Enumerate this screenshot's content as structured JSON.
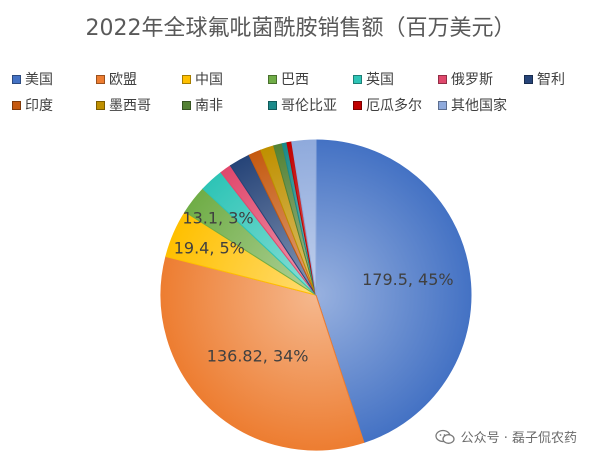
{
  "chart_data": {
    "type": "pie",
    "title": "2022年全球氟吡菌酰胺销售额（百万美元）",
    "slices": [
      {
        "name": "美国",
        "value": 179.5,
        "percent": 45,
        "color": "#4472C4",
        "label": "179.5, 45%"
      },
      {
        "name": "欧盟",
        "value": 136.82,
        "percent": 34,
        "color": "#ED7D31",
        "label": "136.82, 34%"
      },
      {
        "name": "中国",
        "value": 19.4,
        "percent": 5,
        "color": "#FFC000",
        "label": "19.4, 5%"
      },
      {
        "name": "巴西",
        "value": 13.1,
        "percent": 3,
        "color": "#70AD47",
        "label": "13.1, 3%"
      },
      {
        "name": "英国",
        "percent": 2.5,
        "color": "#2EC4B6"
      },
      {
        "name": "俄罗斯",
        "percent": 1.2,
        "color": "#E0486C"
      },
      {
        "name": "智利",
        "percent": 2.2,
        "color": "#264478"
      },
      {
        "name": "印度",
        "percent": 1.3,
        "color": "#C55A11"
      },
      {
        "name": "墨西哥",
        "percent": 1.4,
        "color": "#BF9000"
      },
      {
        "name": "南非",
        "percent": 0.9,
        "color": "#548235"
      },
      {
        "name": "哥伦比亚",
        "percent": 0.5,
        "color": "#1B8A8A"
      },
      {
        "name": "厄瓜多尔",
        "percent": 0.5,
        "color": "#C00000"
      },
      {
        "name": "其他国家",
        "percent": 2.5,
        "color": "#8FAADC"
      }
    ],
    "legend_position": "top"
  },
  "watermark": "公众号 · 磊子侃农药"
}
